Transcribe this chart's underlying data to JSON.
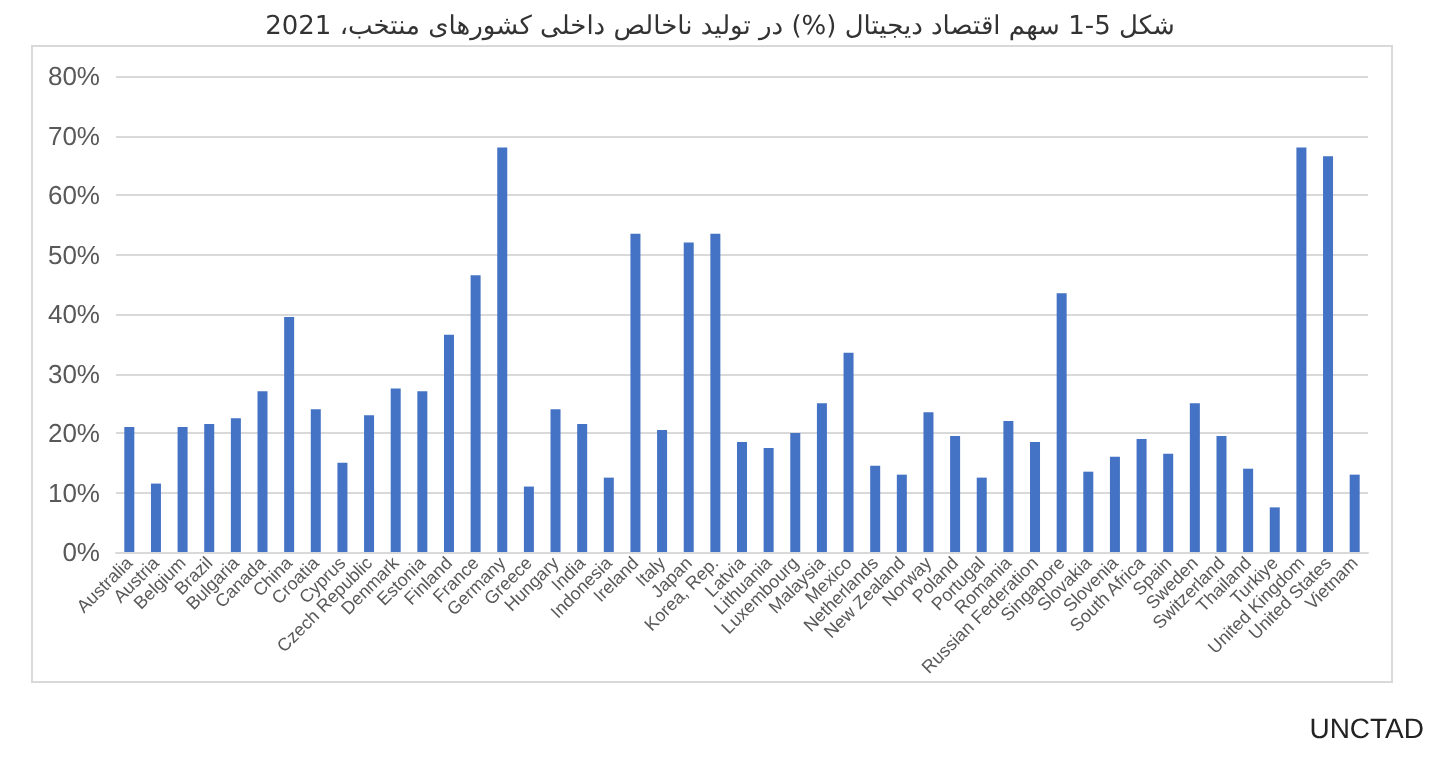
{
  "chart_data": {
    "type": "bar",
    "title": "شکل 5-1 سهم اقتصاد دیجیتال (%) در تولید ناخالص داخلی کشورهای منتخب، 2021",
    "categories": [
      "Australia",
      "Austria",
      "Belgium",
      "Brazil",
      "Bulgaria",
      "Canada",
      "China",
      "Croatia",
      "Cyprus",
      "Czech Republic",
      "Denmark",
      "Estonia",
      "Finland",
      "France",
      "Germany",
      "Greece",
      "Hungary",
      "India",
      "Indonesia",
      "Ireland",
      "Italy",
      "Japan",
      "Korea, Rep.",
      "Latvia",
      "Lithuania",
      "Luxembourg",
      "Malaysia",
      "Mexico",
      "Netherlands",
      "New Zealand",
      "Norway",
      "Poland",
      "Portugal",
      "Romania",
      "Russian Federation",
      "Singapore",
      "Slovakia",
      "Slovenia",
      "South Africa",
      "Spain",
      "Sweden",
      "Switzerland",
      "Thailand",
      "Turkiye",
      "United Kingdom",
      "United States",
      "Vietnam"
    ],
    "values": [
      21,
      11.5,
      21,
      21.5,
      22.5,
      27,
      39.5,
      24,
      15,
      23,
      27.5,
      27,
      36.5,
      46.5,
      68,
      11,
      24,
      21.5,
      12.5,
      53.5,
      20.5,
      52,
      53.5,
      18.5,
      17.5,
      20,
      25,
      33.5,
      14.5,
      13,
      23.5,
      19.5,
      12.5,
      22,
      18.5,
      43.5,
      13.5,
      16,
      19,
      16.5,
      25,
      19.5,
      14,
      7.5,
      68,
      66.5,
      13
    ],
    "color": "#4472c4",
    "ylim": [
      0,
      80
    ],
    "yticks": [
      {
        "value": 0,
        "label": "0%"
      },
      {
        "value": 10,
        "label": "10%"
      },
      {
        "value": 20,
        "label": "20%"
      },
      {
        "value": 30,
        "label": "30%"
      },
      {
        "value": 40,
        "label": "40%"
      },
      {
        "value": 50,
        "label": "50%"
      },
      {
        "value": 60,
        "label": "60%"
      },
      {
        "value": 70,
        "label": "70%"
      },
      {
        "value": 80,
        "label": "80%"
      }
    ],
    "grid": "y",
    "annotations": [
      "UNCTAD"
    ]
  }
}
